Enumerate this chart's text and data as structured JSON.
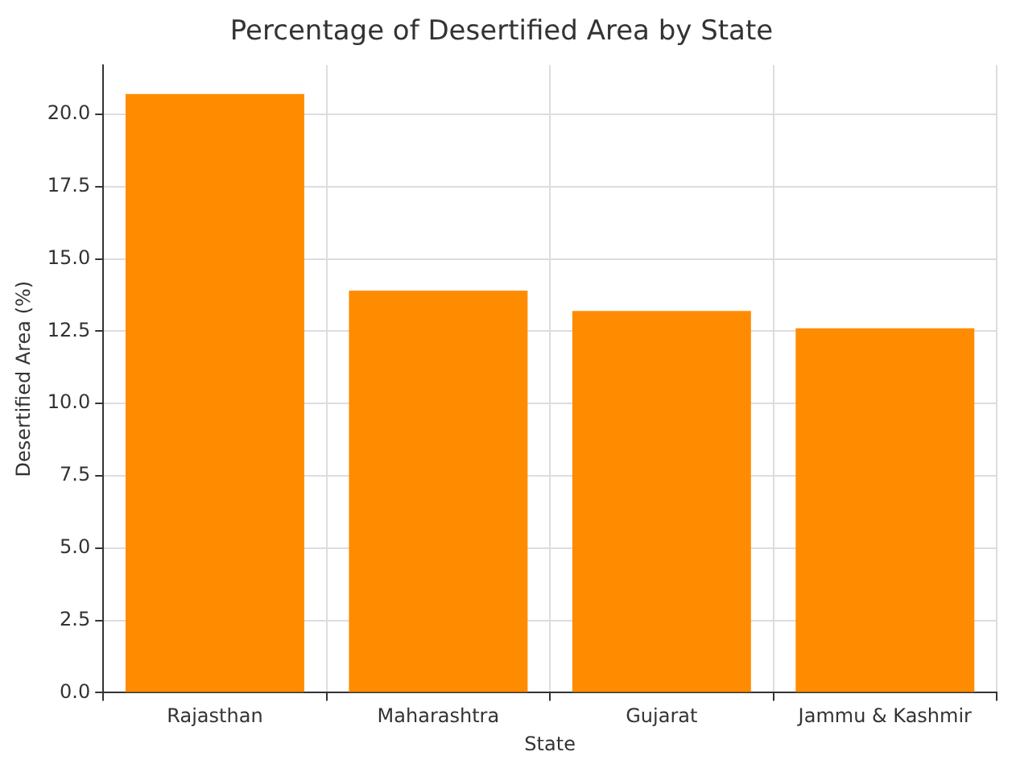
{
  "chart_data": {
    "type": "bar",
    "title": "Percentage of Desertified Area by State",
    "xlabel": "State",
    "ylabel": "Desertified Area (%)",
    "categories": [
      "Rajasthan",
      "Maharashtra",
      "Gujarat",
      "Jammu & Kashmir"
    ],
    "values": [
      20.7,
      13.9,
      13.2,
      12.6
    ],
    "color": "#ff8c00",
    "ylim": [
      0,
      21.7
    ],
    "yticks": [
      {
        "value": 0,
        "label": "0.0"
      },
      {
        "value": 2.5,
        "label": "2.5"
      },
      {
        "value": 5,
        "label": "5.0"
      },
      {
        "value": 7.5,
        "label": "7.5"
      },
      {
        "value": 10,
        "label": "10.0"
      },
      {
        "value": 12.5,
        "label": "12.5"
      },
      {
        "value": 15,
        "label": "15.0"
      },
      {
        "value": 17.5,
        "label": "17.5"
      },
      {
        "value": 20,
        "label": "20.0"
      }
    ],
    "grid": true
  }
}
